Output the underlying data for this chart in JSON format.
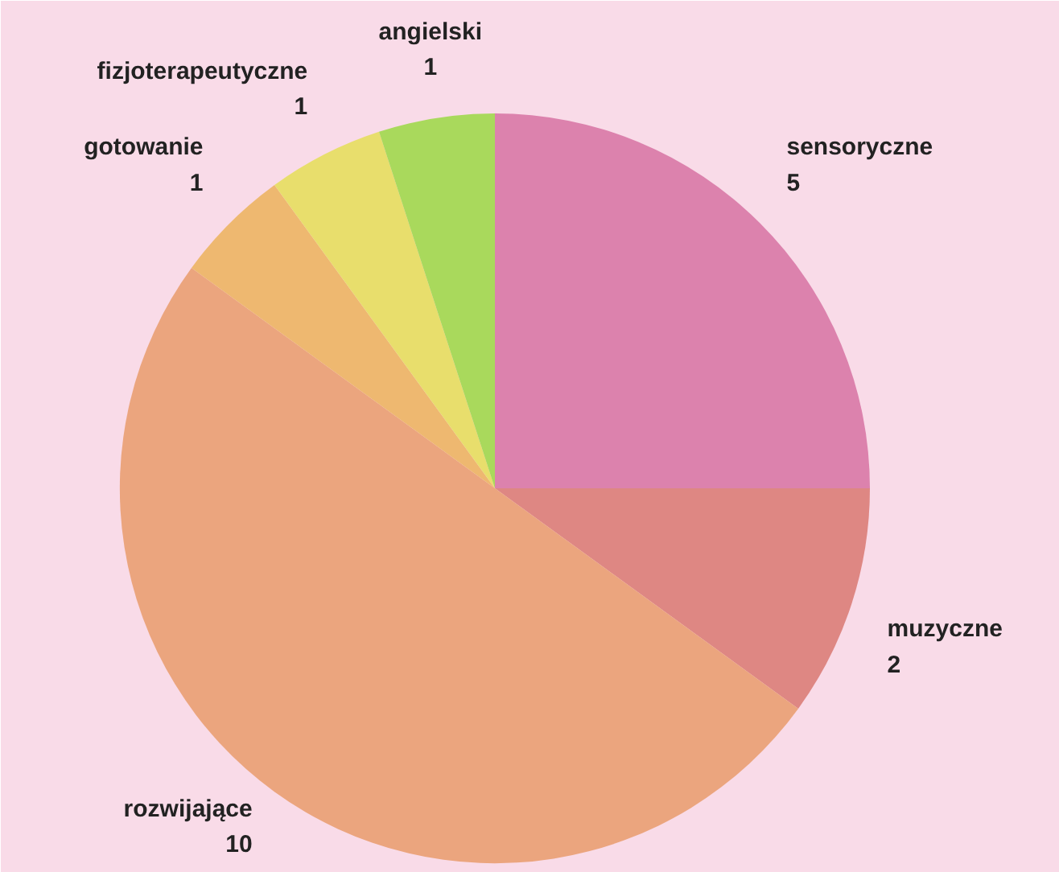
{
  "chart_data": {
    "type": "pie",
    "categories": [
      "sensoryczne",
      "muzyczne",
      "rozwijające",
      "gotowanie",
      "fizjoterapeutyczne",
      "angielski"
    ],
    "values": [
      5,
      2,
      10,
      1,
      1,
      1
    ],
    "colors": [
      "#dc82ad",
      "#de8783",
      "#eba57e",
      "#eeb870",
      "#e8de6c",
      "#a9d95c"
    ],
    "data_labels": true
  }
}
